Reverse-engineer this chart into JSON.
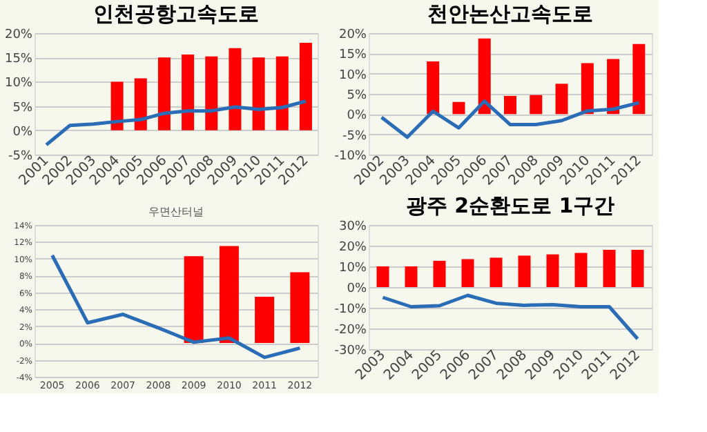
{
  "chart_data": [
    {
      "type": "bar",
      "title": "인천공항고속도로",
      "categories": [
        "2001",
        "2002",
        "2003",
        "2004",
        "2005",
        "2006",
        "2007",
        "2008",
        "2009",
        "2010",
        "2011",
        "2012"
      ],
      "series": [
        {
          "color": "#ff0000",
          "values": [
            null,
            null,
            null,
            10,
            10.7,
            15,
            15.6,
            15.2,
            16.9,
            15,
            15.2,
            18
          ]
        },
        {
          "type": "line",
          "color": "#2a6cb6",
          "values": [
            -3,
            1,
            1.3,
            1.8,
            2.2,
            3.5,
            4,
            4,
            4.8,
            4.3,
            4.7,
            6
          ]
        }
      ],
      "ylim": [
        -5,
        20
      ],
      "yticks": [
        {
          "value": -5,
          "label": "-5%"
        },
        {
          "value": 0,
          "label": "0%"
        },
        {
          "value": 5,
          "label": "5%"
        },
        {
          "value": 10,
          "label": "10%"
        },
        {
          "value": 15,
          "label": "15%"
        },
        {
          "value": 20,
          "label": "20%"
        }
      ],
      "grid": "y",
      "marker": "none"
    },
    {
      "type": "bar",
      "title": "천안논산고속도로",
      "categories": [
        "2002",
        "2003",
        "2004",
        "2005",
        "2006",
        "2007",
        "2008",
        "2009",
        "2010",
        "2011",
        "2012"
      ],
      "series": [
        {
          "color": "#ff0000",
          "values": [
            null,
            null,
            13,
            3,
            18.7,
            4.5,
            4.7,
            7.5,
            12.6,
            13.6,
            17.3
          ]
        },
        {
          "type": "line",
          "color": "#2a6cb6",
          "values": [
            -0.8,
            -5.7,
            0.7,
            -3.4,
            3.2,
            -2.6,
            -2.6,
            -1.6,
            0.8,
            1.2,
            2.8
          ]
        }
      ],
      "ylim": [
        -10,
        20
      ],
      "yticks": [
        {
          "value": -10,
          "label": "-10%"
        },
        {
          "value": -5,
          "label": "-5%"
        },
        {
          "value": 0,
          "label": "0%"
        },
        {
          "value": 5,
          "label": "5%"
        },
        {
          "value": 10,
          "label": "10%"
        },
        {
          "value": 15,
          "label": "15%"
        },
        {
          "value": 20,
          "label": "20%"
        }
      ],
      "grid": "y",
      "marker": "none"
    },
    {
      "type": "bar",
      "title": "우면산터널",
      "categories": [
        "2005",
        "2006",
        "2007",
        "2008",
        "2009",
        "2010",
        "2011",
        "2012"
      ],
      "series": [
        {
          "color": "#ff0000",
          "values": [
            null,
            null,
            null,
            null,
            10.3,
            11.5,
            5.5,
            8.4
          ]
        },
        {
          "type": "line",
          "color": "#2a6cb6",
          "values": [
            10.4,
            2.4,
            3.4,
            1.8,
            0.1,
            0.6,
            -1.7,
            -0.6
          ]
        }
      ],
      "ylim": [
        -4,
        14
      ],
      "yticks": [
        {
          "value": -4,
          "label": "-4%"
        },
        {
          "value": -2,
          "label": "-2%"
        },
        {
          "value": 0,
          "label": "0%"
        },
        {
          "value": 2,
          "label": "2%"
        },
        {
          "value": 4,
          "label": "4%"
        },
        {
          "value": 6,
          "label": "6%"
        },
        {
          "value": 8,
          "label": "8%"
        },
        {
          "value": 10,
          "label": "10%"
        },
        {
          "value": 12,
          "label": "12%"
        },
        {
          "value": 14,
          "label": "14%"
        }
      ],
      "grid": "y",
      "marker": "none"
    },
    {
      "type": "bar",
      "title": "광주 2순환도로 1구간",
      "categories": [
        "2003",
        "2004",
        "2005",
        "2006",
        "2007",
        "2008",
        "2009",
        "2010",
        "2011",
        "2012"
      ],
      "series": [
        {
          "color": "#ff0000",
          "values": [
            10,
            10,
            12.7,
            13.5,
            14.2,
            15.2,
            15.8,
            16.5,
            18,
            18
          ]
        },
        {
          "type": "line",
          "color": "#2a6cb6",
          "values": [
            -5,
            -9.5,
            -9,
            -4,
            -7.8,
            -8.8,
            -8.5,
            -9.5,
            -9.5,
            -25
          ]
        }
      ],
      "ylim": [
        -30,
        30
      ],
      "yticks": [
        {
          "value": -30,
          "label": "-30%"
        },
        {
          "value": -20,
          "label": "-20%"
        },
        {
          "value": -10,
          "label": "-10%"
        },
        {
          "value": 0,
          "label": "0%"
        },
        {
          "value": 10,
          "label": "10%"
        },
        {
          "value": 20,
          "label": "20%"
        },
        {
          "value": 30,
          "label": "30%"
        }
      ],
      "grid": "y",
      "marker": "none"
    }
  ]
}
